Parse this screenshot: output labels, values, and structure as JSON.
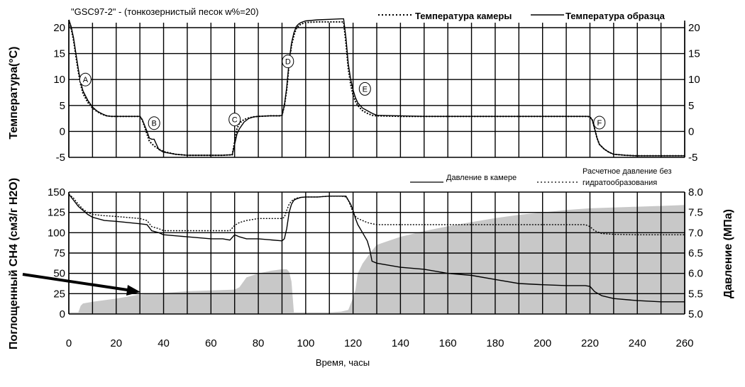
{
  "title": "\"GSC97-2\" - (тонкозернистый песок w%=20)",
  "chart_data": [
    {
      "type": "line",
      "title": "\"GSC97-2\" - (тонкозернистый песок w%=20)",
      "xlabel": "",
      "ylabel": "Температура(°C)",
      "xlim": [
        0,
        260
      ],
      "ylim": [
        -5,
        22
      ],
      "y_ticks": [
        "20",
        "15",
        "10",
        "5",
        "0",
        "-5"
      ],
      "grid": true,
      "legend_position": "top-right",
      "series": [
        {
          "name": "Температура камеры",
          "style": "dotted",
          "x": [
            0,
            1,
            2,
            3,
            4,
            5,
            6,
            8,
            10,
            12,
            14,
            16,
            18,
            20,
            25,
            30,
            31,
            33,
            34,
            36,
            38,
            40,
            45,
            50,
            55,
            60,
            65,
            69,
            70,
            71,
            72,
            74,
            76,
            78,
            80,
            85,
            89,
            90,
            91,
            92,
            93,
            94,
            95,
            96,
            97,
            98,
            100,
            105,
            110,
            115,
            116,
            117,
            118,
            119,
            120,
            121,
            122,
            123,
            124,
            126,
            128,
            130,
            140,
            150,
            160,
            170,
            180,
            190,
            200,
            210,
            218,
            219,
            220,
            221,
            222,
            223,
            224,
            226,
            228,
            230,
            235,
            240,
            250,
            260
          ],
          "y": [
            21.5,
            19.8,
            17.5,
            14.5,
            11.5,
            9,
            7.3,
            5.6,
            4.5,
            3.8,
            3.3,
            3,
            2.9,
            2.9,
            2.9,
            2.9,
            2.2,
            -0.5,
            -1.9,
            -2.8,
            -3.4,
            -3.9,
            -4.4,
            -4.6,
            -4.6,
            -4.6,
            -4.6,
            -4.5,
            -2,
            0.5,
            1.6,
            2.3,
            2.6,
            2.8,
            2.9,
            3,
            3,
            3.1,
            5,
            8,
            13,
            16.5,
            18.5,
            19.8,
            20.3,
            20.7,
            21,
            21.1,
            21.1,
            21.1,
            21.1,
            17,
            12,
            9,
            7,
            5.8,
            5,
            4.5,
            4,
            3.5,
            3.1,
            3,
            2.9,
            2.9,
            2.9,
            2.9,
            2.9,
            2.9,
            2.9,
            2.9,
            2.9,
            2.9,
            2.8,
            2.2,
            0.5,
            -1.3,
            -2.5,
            -3.4,
            -4,
            -4.4,
            -4.6,
            -4.7,
            -4.7,
            -4.7
          ]
        },
        {
          "name": "Температура образца",
          "style": "solid",
          "x": [
            0,
            1,
            2,
            3,
            4,
            5,
            6,
            8,
            10,
            12,
            14,
            16,
            18,
            20,
            25,
            30,
            31,
            33,
            34,
            35,
            36,
            37,
            38,
            40,
            45,
            50,
            55,
            60,
            65,
            69,
            70,
            71,
            72,
            74,
            76,
            78,
            80,
            85,
            89,
            90,
            91,
            92,
            93,
            94,
            95,
            96,
            97,
            98,
            100,
            105,
            110,
            115,
            116,
            117,
            118,
            119,
            120,
            121,
            122,
            123,
            124,
            126,
            128,
            130,
            140,
            150,
            160,
            170,
            180,
            190,
            200,
            210,
            218,
            219,
            220,
            221,
            222,
            223,
            224,
            226,
            228,
            230,
            235,
            240,
            250,
            260
          ],
          "y": [
            21.5,
            20.2,
            18,
            15,
            12,
            9.5,
            7.8,
            6,
            4.7,
            3.9,
            3.4,
            3,
            2.9,
            2.9,
            2.9,
            2.9,
            2.3,
            0,
            -1.3,
            -1.5,
            -1.5,
            -2.5,
            -3.5,
            -4,
            -4.4,
            -4.6,
            -4.6,
            -4.6,
            -4.6,
            -4.5,
            -2.5,
            -0.5,
            0.5,
            1.8,
            2.5,
            2.8,
            2.9,
            3,
            3,
            3.1,
            5,
            8.5,
            13.5,
            17,
            19,
            20.2,
            20.7,
            21,
            21.3,
            21.5,
            21.6,
            21.7,
            21.7,
            18,
            13,
            10,
            8,
            6.5,
            5.5,
            5,
            4.5,
            4,
            3.5,
            3.1,
            3,
            2.9,
            2.9,
            2.9,
            2.9,
            2.9,
            2.9,
            2.9,
            2.9,
            2.9,
            2.8,
            2.2,
            0.5,
            -1.3,
            -2.5,
            -3.4,
            -4,
            -4.4,
            -4.6,
            -4.7,
            -4.7,
            -4.7
          ]
        }
      ],
      "annotations": [
        {
          "label": "A",
          "x": 7,
          "y": 10
        },
        {
          "label": "B",
          "x": 36,
          "y": 1.6
        },
        {
          "label": "C",
          "x": 70,
          "y": 2.3
        },
        {
          "label": "D",
          "x": 92.5,
          "y": 13.5
        },
        {
          "label": "E",
          "x": 125,
          "y": 8.2
        },
        {
          "label": "F",
          "x": 224,
          "y": 1.7
        }
      ]
    },
    {
      "type": "area",
      "title": "",
      "xlabel": "Время, часы",
      "ylabel": "Поглощенный CH4 (см3/г H2O)",
      "y2label": "Давление (МПа)",
      "xlim": [
        0,
        260
      ],
      "ylim": [
        0,
        150
      ],
      "y2lim": [
        5.0,
        8.0
      ],
      "x_ticks": [
        "0",
        "20",
        "40",
        "60",
        "80",
        "100",
        "120",
        "140",
        "160",
        "180",
        "200",
        "220",
        "240",
        "260"
      ],
      "y_ticks": [
        "150",
        "125",
        "100",
        "75",
        "50",
        "25",
        "0"
      ],
      "y2_ticks": [
        "8.0",
        "7.5",
        "7.0",
        "6.5",
        "6.0",
        "5.5",
        "5.0"
      ],
      "grid": true,
      "legend_position": "top-right",
      "series": [
        {
          "name": "",
          "style": "filled-gray",
          "axis": "left",
          "x": [
            0,
            4,
            5,
            6,
            10,
            20,
            30,
            40,
            50,
            60,
            70,
            72,
            75,
            80,
            85,
            90,
            92,
            93,
            94,
            95,
            100,
            110,
            115,
            118,
            120,
            121,
            122,
            124,
            126,
            128,
            130,
            135,
            140,
            150,
            160,
            170,
            180,
            190,
            200,
            210,
            220,
            230,
            240,
            250,
            260
          ],
          "y": [
            2,
            2,
            10,
            13,
            15,
            19,
            24,
            26,
            28,
            29,
            30,
            33,
            45,
            50,
            53,
            55,
            55,
            52,
            40,
            2,
            2,
            2,
            3,
            5,
            20,
            30,
            50,
            62,
            70,
            78,
            85,
            90,
            95,
            102,
            108,
            113,
            118,
            122,
            125,
            128,
            130,
            131,
            132,
            133,
            134
          ]
        },
        {
          "name": "Давление в камере",
          "style": "solid",
          "axis": "right",
          "x": [
            0,
            2,
            4,
            6,
            8,
            10,
            15,
            20,
            30,
            33,
            35,
            38,
            40,
            50,
            60,
            65,
            68,
            70,
            72,
            75,
            80,
            90,
            91,
            92,
            93,
            94,
            95,
            96,
            97,
            98,
            100,
            105,
            110,
            115,
            117,
            118,
            119,
            120,
            121,
            122,
            124,
            126,
            127,
            128,
            130,
            140,
            150,
            160,
            170,
            180,
            190,
            200,
            210,
            218,
            220,
            222,
            225,
            230,
            240,
            250,
            260
          ],
          "y": [
            7.95,
            7.8,
            7.65,
            7.55,
            7.45,
            7.38,
            7.3,
            7.28,
            7.22,
            7.2,
            7.05,
            7.0,
            6.95,
            6.9,
            6.85,
            6.85,
            6.82,
            6.95,
            6.9,
            6.85,
            6.85,
            6.8,
            6.85,
            7.1,
            7.5,
            7.7,
            7.8,
            7.83,
            7.85,
            7.87,
            7.88,
            7.88,
            7.9,
            7.9,
            7.9,
            7.8,
            7.7,
            7.55,
            7.35,
            7.2,
            7.0,
            6.8,
            6.6,
            6.3,
            6.25,
            6.15,
            6.1,
            6.0,
            5.95,
            5.85,
            5.75,
            5.72,
            5.7,
            5.7,
            5.68,
            5.55,
            5.45,
            5.38,
            5.33,
            5.3,
            5.3
          ]
        },
        {
          "name": "Расчетное давление без гидратообразования",
          "style": "dotted",
          "axis": "right",
          "x": [
            0,
            2,
            4,
            6,
            8,
            10,
            15,
            20,
            30,
            33,
            35,
            38,
            40,
            50,
            60,
            65,
            68,
            70,
            72,
            75,
            80,
            90,
            91,
            92,
            93,
            94,
            95,
            96,
            97,
            98,
            100,
            105,
            110,
            115,
            117,
            118,
            119,
            120,
            121,
            122,
            124,
            126,
            128,
            130,
            140,
            150,
            160,
            170,
            180,
            190,
            200,
            210,
            218,
            220,
            222,
            225,
            230,
            240,
            250,
            260
          ],
          "y": [
            7.95,
            7.85,
            7.7,
            7.58,
            7.5,
            7.45,
            7.42,
            7.4,
            7.35,
            7.3,
            7.15,
            7.1,
            7.05,
            7.05,
            7.05,
            7.05,
            7.05,
            7.18,
            7.25,
            7.3,
            7.35,
            7.35,
            7.38,
            7.55,
            7.7,
            7.78,
            7.82,
            7.85,
            7.86,
            7.87,
            7.88,
            7.88,
            7.9,
            7.9,
            7.88,
            7.8,
            7.65,
            7.5,
            7.4,
            7.35,
            7.3,
            7.25,
            7.22,
            7.2,
            7.2,
            7.2,
            7.2,
            7.2,
            7.2,
            7.2,
            7.2,
            7.2,
            7.2,
            7.15,
            7.05,
            6.98,
            6.96,
            6.95,
            6.95,
            6.95
          ]
        }
      ],
      "legend_labels": [
        "Давление в камере",
        "Расчетное давление без",
        "гидратообразования"
      ]
    }
  ]
}
